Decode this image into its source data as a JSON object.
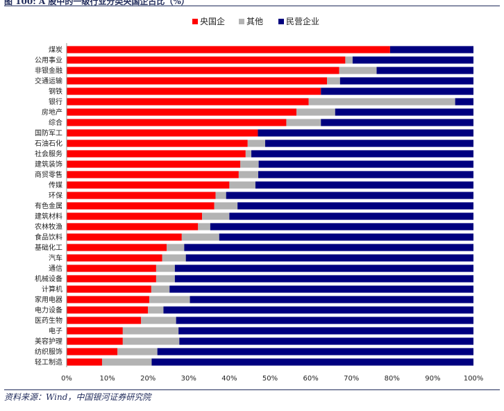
{
  "figure_title": "图 100: A 股中的一级行业分类央国企占比（%）",
  "source_note": "资料来源：Wind，中国银河证券研究院",
  "chart_data": {
    "type": "bar",
    "orientation": "horizontal",
    "stacked": true,
    "title": "",
    "xlabel": "",
    "ylabel": "",
    "xlim": [
      0,
      1
    ],
    "x_ticks": [
      "0%",
      "10%",
      "20%",
      "30%",
      "40%",
      "50%",
      "60%",
      "70%",
      "80%",
      "90%",
      "100%"
    ],
    "legend_position": "top",
    "grid": false,
    "categories": [
      "煤炭",
      "公用事业",
      "非银金融",
      "交通运输",
      "钢铁",
      "银行",
      "房地产",
      "综合",
      "国防军工",
      "石油石化",
      "社会服务",
      "建筑装饰",
      "商贸零售",
      "传媒",
      "环保",
      "有色金属",
      "建筑材料",
      "农林牧渔",
      "食品饮料",
      "基础化工",
      "汽车",
      "通信",
      "机械设备",
      "计算机",
      "家用电器",
      "电力设备",
      "医药生物",
      "电子",
      "美容护理",
      "纺织服饰",
      "轻工制造"
    ],
    "series": [
      {
        "name": "央国企",
        "color": "#ff0000",
        "values": [
          0.795,
          0.685,
          0.67,
          0.64,
          0.625,
          0.595,
          0.565,
          0.54,
          0.47,
          0.445,
          0.44,
          0.427,
          0.423,
          0.4,
          0.366,
          0.363,
          0.333,
          0.323,
          0.283,
          0.246,
          0.235,
          0.22,
          0.22,
          0.208,
          0.203,
          0.2,
          0.183,
          0.138,
          0.138,
          0.125,
          0.087
        ]
      },
      {
        "name": "其他",
        "color": "#b3b3b3",
        "values": [
          0.0,
          0.018,
          0.092,
          0.032,
          0.0,
          0.36,
          0.095,
          0.085,
          0.0,
          0.043,
          0.014,
          0.045,
          0.048,
          0.064,
          0.026,
          0.057,
          0.067,
          0.03,
          0.092,
          0.043,
          0.058,
          0.046,
          0.046,
          0.045,
          0.1,
          0.038,
          0.086,
          0.137,
          0.139,
          0.098,
          0.122
        ]
      },
      {
        "name": "民营企业",
        "color": "#00007f",
        "values": [
          0.205,
          0.297,
          0.238,
          0.328,
          0.375,
          0.045,
          0.34,
          0.375,
          0.53,
          0.512,
          0.546,
          0.528,
          0.529,
          0.536,
          0.608,
          0.58,
          0.6,
          0.647,
          0.625,
          0.711,
          0.707,
          0.734,
          0.734,
          0.747,
          0.697,
          0.762,
          0.731,
          0.725,
          0.723,
          0.777,
          0.791
        ]
      }
    ]
  }
}
